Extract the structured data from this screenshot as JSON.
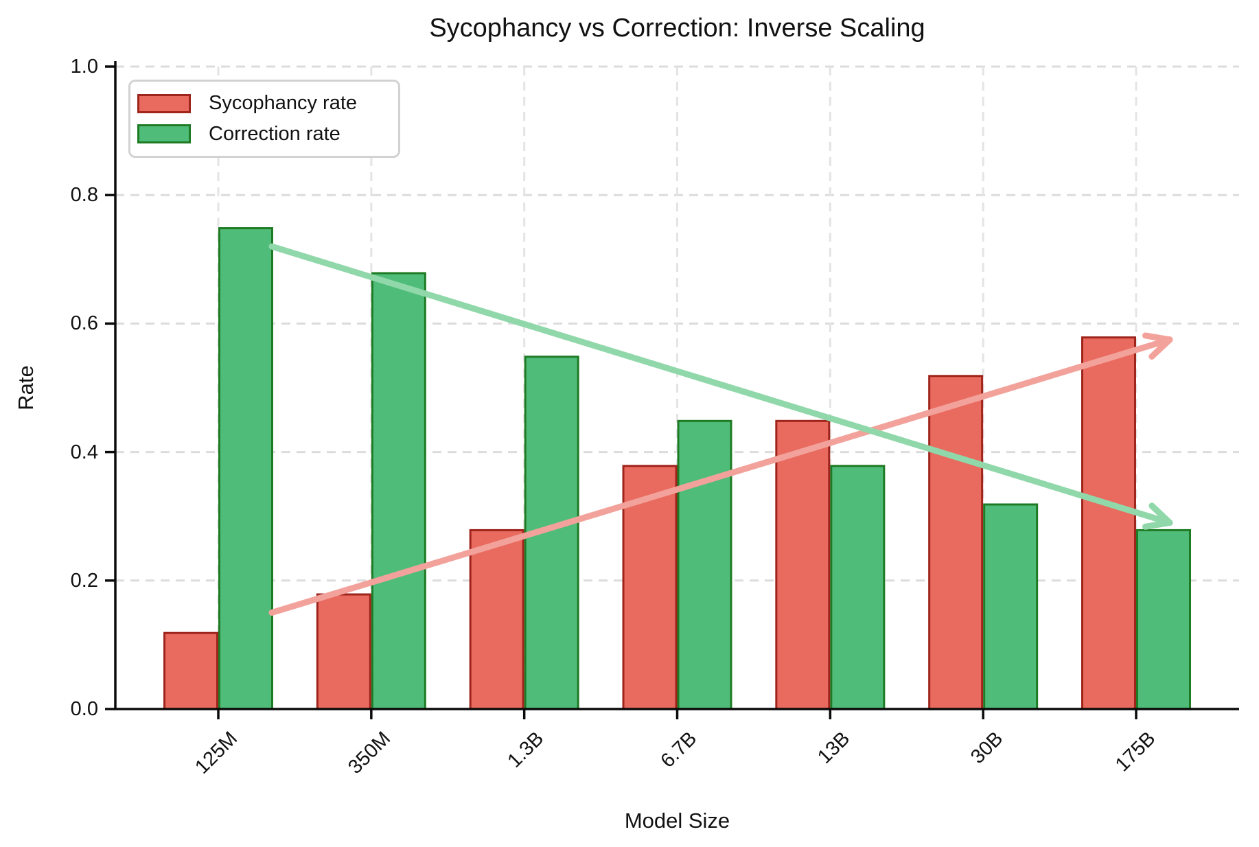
{
  "figure": {
    "background": "#ffffff",
    "text_color": "#111111"
  },
  "chart_data": {
    "type": "bar",
    "title": "Sycophancy vs Correction: Inverse Scaling",
    "xlabel": "Model Size",
    "ylabel": "Rate",
    "categories": [
      "125M",
      "350M",
      "1.3B",
      "6.7B",
      "13B",
      "30B",
      "175B"
    ],
    "series": [
      {
        "name": "Sycophancy rate",
        "values": [
          0.12,
          0.18,
          0.28,
          0.38,
          0.45,
          0.52,
          0.58
        ],
        "fill_color": "#e96a5e",
        "edge_color": "#9e241c"
      },
      {
        "name": "Correction rate",
        "values": [
          0.75,
          0.68,
          0.55,
          0.45,
          0.38,
          0.32,
          0.28
        ],
        "fill_color": "#50bc7a",
        "edge_color": "#1e7b24"
      }
    ],
    "ylim": [
      0.0,
      1.0
    ],
    "yticks": [
      0.0,
      0.2,
      0.4,
      0.6,
      0.8,
      1.0
    ],
    "ytick_labels": [
      "0.0",
      "0.2",
      "0.4",
      "0.6",
      "0.8",
      "1.0"
    ],
    "grid": true,
    "grid_style": "dashed",
    "legend_position": "upper left",
    "annotations": [
      {
        "type": "arrow",
        "name": "sycophancy-trend-arrow",
        "color": "#f2a29b",
        "from": [
          0.35,
          0.15
        ],
        "to": [
          6.22,
          0.575
        ]
      },
      {
        "type": "arrow",
        "name": "correction-trend-arrow",
        "color": "#90d8aa",
        "from": [
          0.35,
          0.72
        ],
        "to": [
          6.22,
          0.29
        ]
      }
    ],
    "colors": {
      "grid_horizontal": "#dcdcdc",
      "grid_vertical": "#e4e4e4",
      "axis": "#0a0a0a",
      "legend_border": "#d2d2d2"
    }
  }
}
